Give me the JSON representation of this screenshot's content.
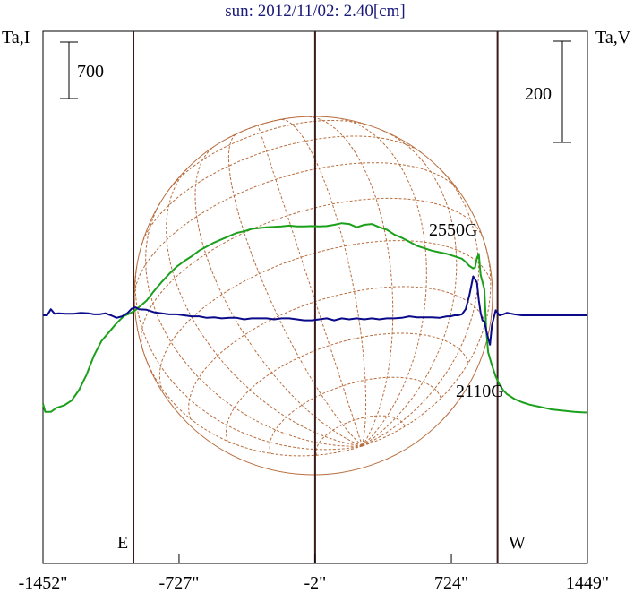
{
  "chart_data": {
    "type": "line",
    "title": "sun: 2012/11/02: 2.40[cm]",
    "ylabel_left": "Ta,I",
    "ylabel_right": "Ta,V",
    "scale_left_label": "700",
    "scale_right_label": "200",
    "x_ticks": [
      {
        "value": -1452,
        "label": "-1452\""
      },
      {
        "value": -727,
        "label": "-727\""
      },
      {
        "value": -2,
        "label": "-2\""
      },
      {
        "value": 724,
        "label": "724\""
      },
      {
        "value": 1449,
        "label": "1449\""
      }
    ],
    "xlim": [
      -1452,
      1449
    ],
    "limb_markers": [
      {
        "label": "E",
        "x": -970
      },
      {
        "label": "W",
        "x": 970
      }
    ],
    "center_line_x": -2,
    "annotations": [
      {
        "text": "2550G",
        "x": 770
      },
      {
        "text": "2110G",
        "x": 900
      }
    ],
    "series": [
      {
        "role": "intensity",
        "color": "#1aa01a",
        "unit": "left",
        "x": [
          -1452,
          -1440,
          -1410,
          -1380,
          -1340,
          -1300,
          -1260,
          -1220,
          -1180,
          -1140,
          -1100,
          -1060,
          -1020,
          -990,
          -960,
          -930,
          -900,
          -860,
          -820,
          -780,
          -740,
          -700,
          -660,
          -620,
          -580,
          -540,
          -500,
          -460,
          -420,
          -380,
          -340,
          -300,
          -260,
          -220,
          -180,
          -140,
          -100,
          -60,
          -20,
          20,
          60,
          100,
          140,
          180,
          220,
          260,
          300,
          340,
          380,
          420,
          460,
          500,
          540,
          580,
          620,
          660,
          700,
          740,
          780,
          800,
          820,
          840,
          850,
          860,
          870,
          880,
          900,
          910,
          920,
          940,
          960,
          980,
          1000,
          1020,
          1060,
          1100,
          1140,
          1180,
          1220,
          1260,
          1300,
          1340,
          1380,
          1420,
          1449
        ],
        "values": [
          -1120,
          -1220,
          -1220,
          -1170,
          -1140,
          -1080,
          -950,
          -760,
          -520,
          -340,
          -230,
          -120,
          -30,
          0,
          40,
          100,
          160,
          280,
          390,
          490,
          580,
          650,
          710,
          780,
          830,
          880,
          920,
          960,
          1000,
          1020,
          1050,
          1060,
          1070,
          1075,
          1080,
          1090,
          1080,
          1080,
          1085,
          1080,
          1085,
          1100,
          1120,
          1110,
          1070,
          1100,
          1110,
          1070,
          1040,
          980,
          940,
          890,
          840,
          810,
          780,
          760,
          740,
          710,
          680,
          640,
          590,
          560,
          570,
          690,
          740,
          480,
          300,
          -200,
          -480,
          -640,
          -780,
          -880,
          -950,
          -1000,
          -1060,
          -1100,
          -1130,
          -1150,
          -1170,
          -1190,
          -1200,
          -1210,
          -1220,
          -1225,
          -1228
        ]
      },
      {
        "role": "polarization",
        "color": "#0a0a8a",
        "unit": "right",
        "x": [
          -1452,
          -1430,
          -1410,
          -1390,
          -1370,
          -1330,
          -1290,
          -1250,
          -1210,
          -1180,
          -1150,
          -1120,
          -1090,
          -1060,
          -1030,
          -1000,
          -980,
          -960,
          -940,
          -900,
          -860,
          -820,
          -780,
          -740,
          -700,
          -660,
          -620,
          -580,
          -540,
          -500,
          -460,
          -420,
          -380,
          -340,
          -300,
          -260,
          -220,
          -180,
          -140,
          -100,
          -60,
          -20,
          20,
          60,
          100,
          140,
          180,
          220,
          260,
          300,
          340,
          380,
          420,
          460,
          500,
          540,
          580,
          620,
          660,
          700,
          720,
          740,
          760,
          780,
          800,
          820,
          840,
          860,
          870,
          880,
          890,
          900,
          910,
          920,
          930,
          940,
          960,
          980,
          1000,
          1020,
          1060,
          1100,
          1140,
          1180,
          1220,
          1260,
          1300,
          1340,
          1380,
          1420,
          1449
        ],
        "values": [
          0,
          0,
          12,
          3,
          4,
          3,
          3,
          5,
          4,
          2,
          2,
          4,
          0,
          -5,
          -2,
          5,
          13,
          16,
          12,
          11,
          6,
          4,
          2,
          2,
          0,
          -2,
          -2,
          -5,
          -4,
          -6,
          -5,
          -5,
          -8,
          -6,
          -6,
          -6,
          -8,
          -6,
          -6,
          -8,
          -10,
          -10,
          -8,
          -6,
          -10,
          -6,
          -8,
          -6,
          -8,
          -6,
          -8,
          -6,
          -6,
          -5,
          -2,
          -4,
          -4,
          -4,
          -5,
          -2,
          -2,
          0,
          0,
          2,
          12,
          40,
          77,
          65,
          30,
          5,
          -10,
          -12,
          -30,
          -45,
          -58,
          -20,
          10,
          0,
          2,
          5,
          2,
          0,
          0,
          0,
          0,
          0,
          0,
          0,
          0,
          0,
          0
        ]
      }
    ],
    "globe": {
      "visible": true,
      "color": "#b86c3c"
    }
  }
}
